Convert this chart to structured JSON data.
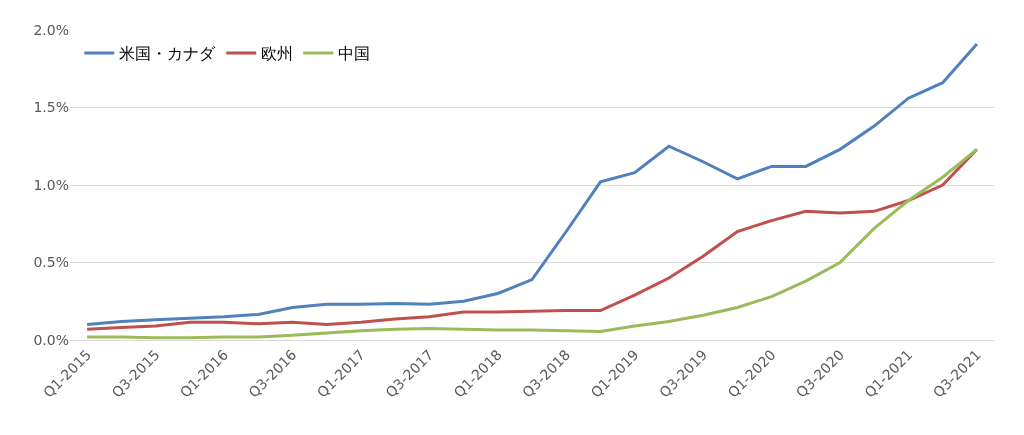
{
  "chart_data": {
    "type": "line",
    "categories": [
      "Q1-2015",
      null,
      "Q3-2015",
      null,
      "Q1-2016",
      null,
      "Q3-2016",
      null,
      "Q1-2017",
      null,
      "Q3-2017",
      null,
      "Q1-2018",
      null,
      "Q3-2018",
      null,
      "Q1-2019",
      null,
      "Q3-2019",
      null,
      "Q1-2020",
      null,
      "Q3-2020",
      null,
      "Q1-2021",
      null,
      "Q3-2021"
    ],
    "series": [
      {
        "name": "米国・カナダ",
        "color": "#4f81bd",
        "values": [
          0.1,
          0.12,
          0.13,
          0.14,
          0.15,
          0.165,
          0.21,
          0.23,
          0.23,
          0.235,
          0.23,
          0.25,
          0.3,
          0.39,
          0.7,
          1.02,
          1.08,
          1.25,
          1.15,
          1.04,
          1.12,
          1.12,
          1.23,
          1.38,
          1.56,
          1.66,
          1.91
        ]
      },
      {
        "name": "欧州",
        "color": "#c0504d",
        "values": [
          0.07,
          0.08,
          0.09,
          0.115,
          0.115,
          0.105,
          0.115,
          0.1,
          0.115,
          0.135,
          0.15,
          0.18,
          0.18,
          0.185,
          0.19,
          0.19,
          0.29,
          0.4,
          0.54,
          0.7,
          0.77,
          0.83,
          0.82,
          0.83,
          0.9,
          1.0,
          1.23
        ]
      },
      {
        "name": "中国",
        "color": "#9bbb59",
        "values": [
          0.02,
          0.02,
          0.015,
          0.015,
          0.02,
          0.02,
          0.03,
          0.045,
          0.06,
          0.07,
          0.075,
          0.07,
          0.065,
          0.065,
          0.06,
          0.055,
          0.09,
          0.12,
          0.16,
          0.21,
          0.28,
          0.38,
          0.5,
          0.72,
          0.9,
          1.05,
          1.23
        ]
      }
    ],
    "ylim": [
      0,
      2.0
    ],
    "yticks": [
      {
        "value": 0,
        "label": "0.0%"
      },
      {
        "value": 0.5,
        "label": "0.5%"
      },
      {
        "value": 1.0,
        "label": "1.0%"
      },
      {
        "value": 1.5,
        "label": "1.5%"
      },
      {
        "value": 2.0,
        "label": "2.0%"
      }
    ],
    "grid": "y",
    "legend": "top left",
    "marker": "none",
    "line_style": "solid"
  }
}
